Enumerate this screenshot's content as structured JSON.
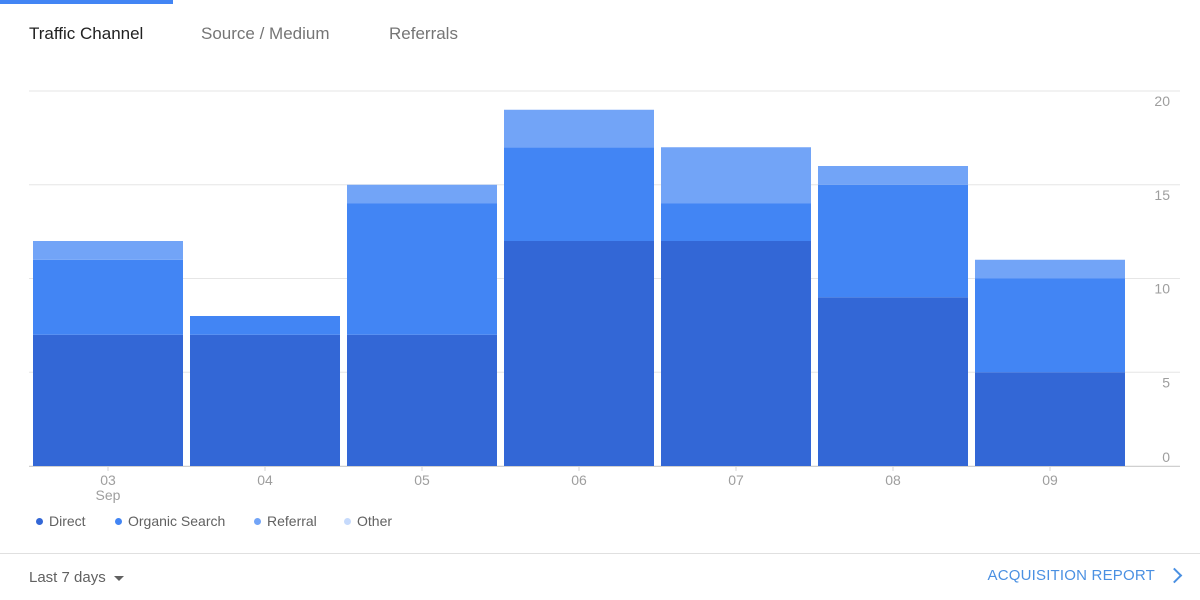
{
  "tabs": [
    {
      "label": "Traffic Channel",
      "active": true
    },
    {
      "label": "Source / Medium",
      "active": false
    },
    {
      "label": "Referrals",
      "active": false
    }
  ],
  "chart_data": {
    "type": "bar",
    "stacked": true,
    "categories": [
      "03",
      "04",
      "05",
      "06",
      "07",
      "08",
      "09"
    ],
    "category_sublabels": [
      "Sep",
      "",
      "",
      "",
      "",
      "",
      ""
    ],
    "series": [
      {
        "name": "Direct",
        "color": "#3367d6",
        "values": [
          7,
          7,
          7,
          12,
          12,
          9,
          5
        ]
      },
      {
        "name": "Organic Search",
        "color": "#4285f4",
        "values": [
          4,
          1,
          7,
          5,
          2,
          6,
          5
        ]
      },
      {
        "name": "Referral",
        "color": "#72a4f7",
        "values": [
          1,
          0,
          1,
          2,
          3,
          1,
          1
        ]
      },
      {
        "name": "Other",
        "color": "#c6dafc",
        "values": [
          0,
          0,
          0,
          0,
          0,
          0,
          0
        ]
      }
    ],
    "yticks": [
      0,
      5,
      10,
      15,
      20
    ],
    "ylim": [
      0,
      20
    ],
    "grid": true,
    "legend": "bottom-left"
  },
  "footer": {
    "date_range_label": "Last 7 days",
    "report_link_label": "ACQUISITION REPORT"
  }
}
